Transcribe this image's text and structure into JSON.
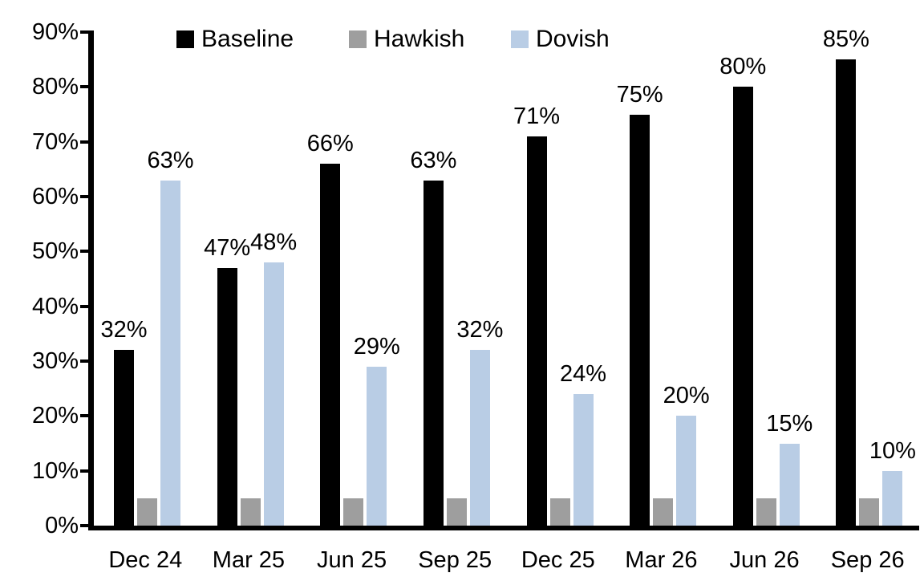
{
  "chart_data": {
    "type": "bar",
    "title": "",
    "xlabel": "",
    "ylabel": "",
    "categories": [
      "Dec 24",
      "Mar 25",
      "Jun 25",
      "Sep 25",
      "Dec 25",
      "Mar 26",
      "Jun 26",
      "Sep 26"
    ],
    "series": [
      {
        "name": "Baseline",
        "color": "#000000",
        "values": [
          32,
          47,
          66,
          63,
          71,
          75,
          80,
          85
        ],
        "labels": [
          "32%",
          "47%",
          "66%",
          "63%",
          "71%",
          "75%",
          "80%",
          "85%"
        ]
      },
      {
        "name": "Hawkish",
        "color": "#9E9E9E",
        "values": [
          5,
          5,
          5,
          5,
          5,
          5,
          5,
          5
        ],
        "labels": [
          "",
          "",
          "",
          "",
          "",
          "",
          "",
          ""
        ]
      },
      {
        "name": "Dovish",
        "color": "#B9CDE5",
        "values": [
          63,
          48,
          29,
          32,
          24,
          20,
          15,
          10
        ],
        "labels": [
          "63%",
          "48%",
          "29%",
          "32%",
          "24%",
          "20%",
          "15%",
          "10%"
        ]
      }
    ],
    "y_axis": {
      "min": 0,
      "max": 90,
      "step": 10,
      "tick_labels": [
        "0%",
        "10%",
        "20%",
        "30%",
        "40%",
        "50%",
        "60%",
        "70%",
        "80%",
        "90%"
      ]
    },
    "ylim": [
      0,
      90
    ],
    "grid": false,
    "legend": {
      "position": "top",
      "items": [
        "Baseline",
        "Hawkish",
        "Dovish"
      ]
    }
  }
}
